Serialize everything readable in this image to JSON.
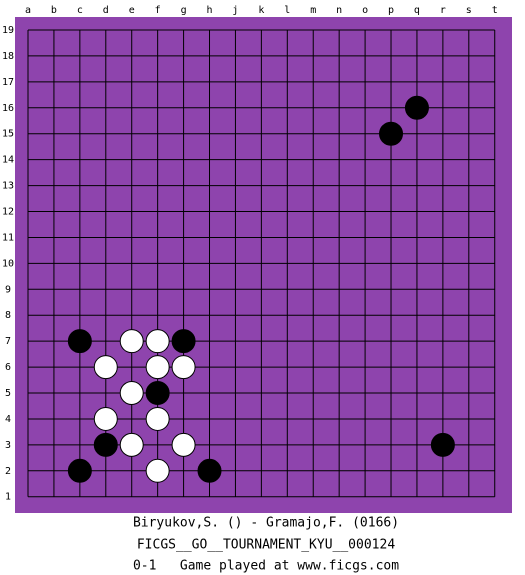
{
  "board": {
    "columns": [
      "a",
      "b",
      "c",
      "d",
      "e",
      "f",
      "g",
      "h",
      "j",
      "k",
      "l",
      "m",
      "n",
      "o",
      "p",
      "q",
      "r",
      "s",
      "t"
    ],
    "rows": [
      19,
      18,
      17,
      16,
      15,
      14,
      13,
      12,
      11,
      10,
      9,
      8,
      7,
      6,
      5,
      4,
      3,
      2,
      1
    ],
    "stones": [
      {
        "color": "black",
        "x": "q",
        "y": 16
      },
      {
        "color": "black",
        "x": "p",
        "y": 15
      },
      {
        "color": "black",
        "x": "c",
        "y": 7
      },
      {
        "color": "white",
        "x": "e",
        "y": 7
      },
      {
        "color": "white",
        "x": "f",
        "y": 7
      },
      {
        "color": "black",
        "x": "g",
        "y": 7
      },
      {
        "color": "white",
        "x": "d",
        "y": 6
      },
      {
        "color": "white",
        "x": "f",
        "y": 6
      },
      {
        "color": "white",
        "x": "g",
        "y": 6
      },
      {
        "color": "white",
        "x": "e",
        "y": 5
      },
      {
        "color": "black",
        "x": "f",
        "y": 5
      },
      {
        "color": "white",
        "x": "d",
        "y": 4
      },
      {
        "color": "white",
        "x": "f",
        "y": 4
      },
      {
        "color": "black",
        "x": "d",
        "y": 3
      },
      {
        "color": "white",
        "x": "e",
        "y": 3
      },
      {
        "color": "white",
        "x": "g",
        "y": 3
      },
      {
        "color": "black",
        "x": "r",
        "y": 3
      },
      {
        "color": "black",
        "x": "c",
        "y": 2
      },
      {
        "color": "white",
        "x": "f",
        "y": 2
      },
      {
        "color": "black",
        "x": "h",
        "y": 2
      }
    ]
  },
  "footer": {
    "players": "Biryukov,S. () - Gramajo,F. (0166)",
    "event": "FICGS__GO__TOURNAMENT_KYU__000124",
    "result": "0-1   Game played at www.ficgs.com"
  }
}
